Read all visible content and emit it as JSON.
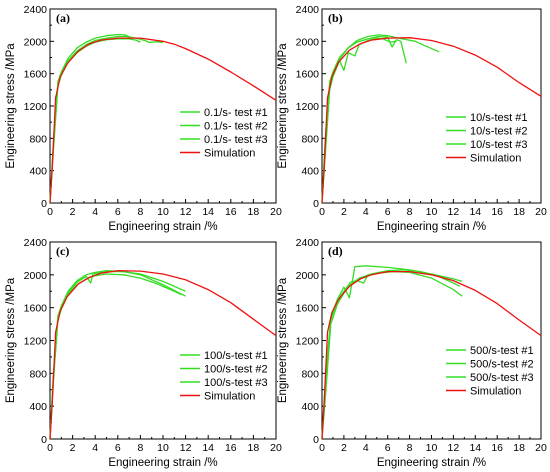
{
  "colors": {
    "test": "#33dd22",
    "simulation": "#ee1111",
    "axis": "#000000"
  },
  "chart_data": [
    {
      "type": "line",
      "panel_label": "(a)",
      "xlabel": "Engineering strain /%",
      "ylabel": "Engineering stress /MPa",
      "xlim": [
        0,
        20
      ],
      "ylim": [
        0,
        2400
      ],
      "xticks": [
        "0",
        "2",
        "4",
        "6",
        "8",
        "10",
        "12",
        "14",
        "16",
        "18",
        "20"
      ],
      "yticks": [
        "0",
        "400",
        "800",
        "1200",
        "1600",
        "2000",
        "2400"
      ],
      "grid": false,
      "legend_position": "center-right",
      "series": [
        {
          "name": "0.1/s- test #1",
          "color": "test",
          "points": [
            [
              0,
              0
            ],
            [
              0.3,
              700
            ],
            [
              0.7,
              1480
            ],
            [
              1.0,
              1600
            ],
            [
              1.6,
              1760
            ],
            [
              2.4,
              1880
            ],
            [
              3.2,
              1960
            ],
            [
              4.0,
              2010
            ],
            [
              5.0,
              2040
            ],
            [
              6.0,
              2060
            ],
            [
              6.8,
              2060
            ],
            [
              7.6,
              2040
            ],
            [
              8.4,
              2010
            ],
            [
              8.8,
              1985
            ],
            [
              9.4,
              1995
            ],
            [
              10.0,
              1985
            ]
          ]
        },
        {
          "name": "0.1/s- test #2",
          "color": "test",
          "points": [
            [
              0,
              0
            ],
            [
              0.3,
              750
            ],
            [
              0.7,
              1500
            ],
            [
              1.0,
              1620
            ],
            [
              1.6,
              1790
            ],
            [
              2.4,
              1920
            ],
            [
              3.2,
              1990
            ],
            [
              4.0,
              2040
            ],
            [
              5.0,
              2070
            ],
            [
              6.0,
              2085
            ],
            [
              6.6,
              2080
            ],
            [
              7.0,
              2060
            ]
          ]
        },
        {
          "name": "0.1/s- test #3",
          "color": "test",
          "points": [
            [
              0,
              0
            ],
            [
              0.3,
              650
            ],
            [
              0.7,
              1450
            ],
            [
              1.0,
              1580
            ],
            [
              1.6,
              1740
            ],
            [
              2.4,
              1860
            ],
            [
              3.2,
              1940
            ],
            [
              4.0,
              1990
            ],
            [
              5.0,
              2020
            ],
            [
              6.0,
              2030
            ],
            [
              7.0,
              2030
            ],
            [
              7.6,
              2015
            ],
            [
              8.0,
              1990
            ]
          ]
        },
        {
          "name": "Simulation",
          "color": "simulation",
          "points": [
            [
              0,
              0
            ],
            [
              0.2,
              450
            ],
            [
              0.5,
              1300
            ],
            [
              0.9,
              1560
            ],
            [
              1.5,
              1720
            ],
            [
              2.5,
              1880
            ],
            [
              3.5,
              1970
            ],
            [
              4.5,
              2015
            ],
            [
              6.0,
              2040
            ],
            [
              8.0,
              2040
            ],
            [
              10.0,
              2000
            ],
            [
              11.0,
              1965
            ],
            [
              12.0,
              1910
            ],
            [
              14.0,
              1780
            ],
            [
              16.0,
              1620
            ],
            [
              18.0,
              1450
            ],
            [
              20.0,
              1270
            ]
          ]
        }
      ]
    },
    {
      "type": "line",
      "panel_label": "(b)",
      "xlabel": "Engineering strain /%",
      "ylabel": "Engineering stress /MPa",
      "xlim": [
        0,
        20
      ],
      "ylim": [
        0,
        2400
      ],
      "xticks": [
        "0",
        "2",
        "4",
        "6",
        "8",
        "10",
        "12",
        "14",
        "16",
        "18",
        "20"
      ],
      "yticks": [
        "0",
        "400",
        "800",
        "1200",
        "1600",
        "2000",
        "2400"
      ],
      "grid": false,
      "legend_position": "center-right",
      "series": [
        {
          "name": "10/s-test #1",
          "color": "test",
          "points": [
            [
              0,
              0
            ],
            [
              0.3,
              800
            ],
            [
              0.7,
              1500
            ],
            [
              1.0,
              1620
            ],
            [
              1.6,
              1800
            ],
            [
              2.4,
              1920
            ],
            [
              3.2,
              1990
            ],
            [
              4.2,
              2030
            ],
            [
              5.2,
              2060
            ],
            [
              6.0,
              2050
            ],
            [
              6.4,
              1930
            ],
            [
              6.8,
              2020
            ],
            [
              7.2,
              2000
            ],
            [
              7.7,
              1730
            ]
          ]
        },
        {
          "name": "10/s-test #2",
          "color": "test",
          "points": [
            [
              0,
              0
            ],
            [
              0.3,
              750
            ],
            [
              0.7,
              1450
            ],
            [
              1.0,
              1600
            ],
            [
              1.6,
              1780
            ],
            [
              2.4,
              1920
            ],
            [
              3.2,
              2010
            ],
            [
              4.2,
              2060
            ],
            [
              5.2,
              2080
            ],
            [
              6.0,
              2070
            ],
            [
              7.0,
              2040
            ],
            [
              8.5,
              2000
            ],
            [
              9.5,
              1940
            ],
            [
              10.7,
              1870
            ]
          ]
        },
        {
          "name": "10/s-test #3",
          "color": "test",
          "points": [
            [
              0,
              0
            ],
            [
              0.3,
              600
            ],
            [
              0.7,
              1400
            ],
            [
              1.0,
              1560
            ],
            [
              1.6,
              1760
            ],
            [
              2.0,
              1640
            ],
            [
              2.4,
              1860
            ],
            [
              3.0,
              1820
            ],
            [
              3.4,
              1960
            ],
            [
              4.2,
              2010
            ],
            [
              5.0,
              2040
            ],
            [
              5.6,
              2030
            ],
            [
              6.2,
              1990
            ],
            [
              6.8,
              2000
            ]
          ]
        },
        {
          "name": "Simulation",
          "color": "simulation",
          "points": [
            [
              0,
              0
            ],
            [
              0.2,
              450
            ],
            [
              0.5,
              1300
            ],
            [
              0.9,
              1560
            ],
            [
              1.5,
              1740
            ],
            [
              2.5,
              1890
            ],
            [
              3.5,
              1970
            ],
            [
              4.5,
              2015
            ],
            [
              6.0,
              2040
            ],
            [
              8.0,
              2045
            ],
            [
              10.0,
              2010
            ],
            [
              12.0,
              1940
            ],
            [
              14.0,
              1830
            ],
            [
              16.0,
              1680
            ],
            [
              18.0,
              1490
            ],
            [
              20.0,
              1320
            ]
          ]
        }
      ]
    },
    {
      "type": "line",
      "panel_label": "(c)",
      "xlabel": "Engineering strain /%",
      "ylabel": "Engineering stress /MPa",
      "xlim": [
        0,
        20
      ],
      "ylim": [
        0,
        2400
      ],
      "xticks": [
        "0",
        "2",
        "4",
        "6",
        "8",
        "10",
        "12",
        "14",
        "16",
        "18",
        "20"
      ],
      "yticks": [
        "0",
        "400",
        "800",
        "1200",
        "1600",
        "2000",
        "2400"
      ],
      "grid": false,
      "legend_position": "center-right",
      "series": [
        {
          "name": "100/s-test #1",
          "color": "test",
          "points": [
            [
              0,
              0
            ],
            [
              0.3,
              800
            ],
            [
              0.7,
              1500
            ],
            [
              1.0,
              1620
            ],
            [
              1.6,
              1800
            ],
            [
              2.4,
              1930
            ],
            [
              3.2,
              2000
            ],
            [
              4.0,
              2030
            ],
            [
              5.0,
              2050
            ],
            [
              6.5,
              2040
            ],
            [
              8.0,
              2000
            ],
            [
              10.0,
              1880
            ],
            [
              12.0,
              1740
            ]
          ]
        },
        {
          "name": "100/s-test #2",
          "color": "test",
          "points": [
            [
              0,
              0
            ],
            [
              0.3,
              750
            ],
            [
              0.7,
              1480
            ],
            [
              1.0,
              1600
            ],
            [
              1.6,
              1780
            ],
            [
              2.4,
              1910
            ],
            [
              3.2,
              1980
            ],
            [
              3.6,
              1900
            ],
            [
              3.8,
              2010
            ],
            [
              5.0,
              2040
            ],
            [
              6.5,
              2040
            ],
            [
              8.0,
              2010
            ],
            [
              10.0,
              1920
            ],
            [
              12.0,
              1800
            ]
          ]
        },
        {
          "name": "100/s-test #3",
          "color": "test",
          "points": [
            [
              0,
              0
            ],
            [
              0.3,
              700
            ],
            [
              0.7,
              1450
            ],
            [
              1.0,
              1580
            ],
            [
              1.6,
              1760
            ],
            [
              2.4,
              1880
            ],
            [
              3.2,
              1950
            ],
            [
              4.0,
              1990
            ],
            [
              5.0,
              2010
            ],
            [
              6.5,
              2000
            ],
            [
              8.0,
              1960
            ],
            [
              9.5,
              1890
            ],
            [
              11.0,
              1800
            ],
            [
              11.6,
              1760
            ]
          ]
        },
        {
          "name": "Simulation",
          "color": "simulation",
          "points": [
            [
              0,
              0
            ],
            [
              0.2,
              450
            ],
            [
              0.5,
              1300
            ],
            [
              0.9,
              1560
            ],
            [
              1.5,
              1730
            ],
            [
              2.5,
              1890
            ],
            [
              3.5,
              1970
            ],
            [
              4.5,
              2020
            ],
            [
              6.0,
              2050
            ],
            [
              8.0,
              2045
            ],
            [
              10.0,
              2010
            ],
            [
              12.0,
              1940
            ],
            [
              14.0,
              1820
            ],
            [
              16.0,
              1660
            ],
            [
              18.0,
              1460
            ],
            [
              20.0,
              1260
            ]
          ]
        }
      ]
    },
    {
      "type": "line",
      "panel_label": "(d)",
      "xlabel": "Engineering strain /%",
      "ylabel": "Engineering stress /MPa",
      "xlim": [
        0,
        20
      ],
      "ylim": [
        0,
        2400
      ],
      "xticks": [
        "0",
        "2",
        "4",
        "6",
        "8",
        "10",
        "12",
        "14",
        "16",
        "18",
        "20"
      ],
      "yticks": [
        "0",
        "400",
        "800",
        "1200",
        "1600",
        "2000",
        "2400"
      ],
      "grid": false,
      "legend_position": "center-right",
      "series": [
        {
          "name": "500/s-test #1",
          "color": "test",
          "points": [
            [
              0,
              0
            ],
            [
              0.3,
              700
            ],
            [
              0.8,
              1480
            ],
            [
              1.4,
              1700
            ],
            [
              2.0,
              1850
            ],
            [
              2.5,
              1720
            ],
            [
              3.0,
              2100
            ],
            [
              4.0,
              2110
            ],
            [
              6.0,
              2090
            ],
            [
              8.0,
              2060
            ],
            [
              10.0,
              2010
            ],
            [
              12.0,
              1950
            ],
            [
              12.8,
              1920
            ]
          ]
        },
        {
          "name": "500/s-test #2",
          "color": "test",
          "points": [
            [
              0,
              0
            ],
            [
              0.3,
              600
            ],
            [
              0.8,
              1450
            ],
            [
              1.4,
              1680
            ],
            [
              2.0,
              1800
            ],
            [
              2.6,
              1910
            ],
            [
              3.2,
              1930
            ],
            [
              3.8,
              1900
            ],
            [
              4.2,
              2000
            ],
            [
              5.0,
              2020
            ],
            [
              6.5,
              2040
            ],
            [
              8.0,
              2030
            ],
            [
              10.0,
              1960
            ],
            [
              12.0,
              1820
            ],
            [
              12.8,
              1740
            ]
          ]
        },
        {
          "name": "500/s-test #3",
          "color": "test",
          "points": [
            [
              0,
              0
            ],
            [
              0.3,
              500
            ],
            [
              0.8,
              1400
            ],
            [
              1.4,
              1640
            ],
            [
              2.0,
              1780
            ],
            [
              2.6,
              1880
            ],
            [
              3.4,
              1960
            ],
            [
              4.5,
              2010
            ],
            [
              6.0,
              2050
            ],
            [
              7.5,
              2060
            ],
            [
              9.0,
              2040
            ],
            [
              10.5,
              1990
            ],
            [
              12.0,
              1900
            ],
            [
              12.6,
              1860
            ]
          ]
        },
        {
          "name": "Simulation",
          "color": "simulation",
          "points": [
            [
              0,
              0
            ],
            [
              0.2,
              450
            ],
            [
              0.5,
              1300
            ],
            [
              0.9,
              1540
            ],
            [
              1.5,
              1700
            ],
            [
              2.5,
              1860
            ],
            [
              3.5,
              1950
            ],
            [
              4.5,
              2000
            ],
            [
              6.0,
              2040
            ],
            [
              8.0,
              2040
            ],
            [
              10.0,
              2000
            ],
            [
              12.0,
              1930
            ],
            [
              14.0,
              1810
            ],
            [
              16.0,
              1650
            ],
            [
              18.0,
              1450
            ],
            [
              20.0,
              1260
            ]
          ]
        }
      ]
    }
  ]
}
